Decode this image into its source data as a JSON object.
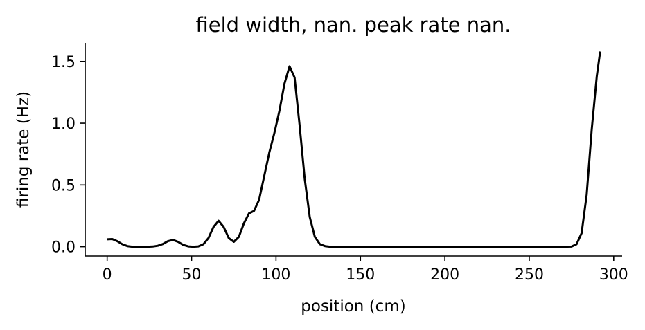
{
  "chart_data": {
    "type": "line",
    "title": "field width, nan. peak rate nan.",
    "xlabel": "position (cm)",
    "ylabel": "firing rate (Hz)",
    "xlim": [
      -13,
      305
    ],
    "ylim": [
      -0.075,
      1.65
    ],
    "xticks": [
      0,
      50,
      100,
      150,
      200,
      250,
      300
    ],
    "xtick_labels": [
      "0",
      "50",
      "100",
      "150",
      "200",
      "250",
      "300"
    ],
    "yticks": [
      0.0,
      0.5,
      1.0,
      1.5
    ],
    "ytick_labels": [
      "0.0",
      "0.5",
      "1.0",
      "1.5"
    ],
    "grid": false,
    "series": [
      {
        "color": "#000000",
        "x": [
          0,
          3,
          6,
          9,
          12,
          15,
          18,
          21,
          24,
          27,
          30,
          33,
          36,
          39,
          42,
          45,
          48,
          51,
          54,
          57,
          60,
          63,
          66,
          69,
          72,
          75,
          78,
          81,
          84,
          87,
          90,
          93,
          96,
          99,
          102,
          105,
          108,
          111,
          114,
          117,
          120,
          123,
          126,
          129,
          132,
          135,
          140,
          150,
          200,
          250,
          270,
          275,
          278,
          281,
          284,
          287,
          290,
          292
        ],
        "y": [
          0.06,
          0.062,
          0.045,
          0.02,
          0.005,
          0.0,
          0.0,
          0.0,
          0.0,
          0.002,
          0.008,
          0.022,
          0.045,
          0.055,
          0.04,
          0.015,
          0.003,
          0.0,
          0.003,
          0.02,
          0.07,
          0.16,
          0.21,
          0.16,
          0.07,
          0.04,
          0.08,
          0.19,
          0.27,
          0.29,
          0.38,
          0.57,
          0.76,
          0.92,
          1.1,
          1.32,
          1.46,
          1.37,
          0.98,
          0.55,
          0.24,
          0.08,
          0.02,
          0.005,
          0.0,
          0.0,
          0.0,
          0.0,
          0.0,
          0.0,
          0.0,
          0.001,
          0.02,
          0.11,
          0.42,
          0.95,
          1.38,
          1.58
        ]
      }
    ]
  }
}
